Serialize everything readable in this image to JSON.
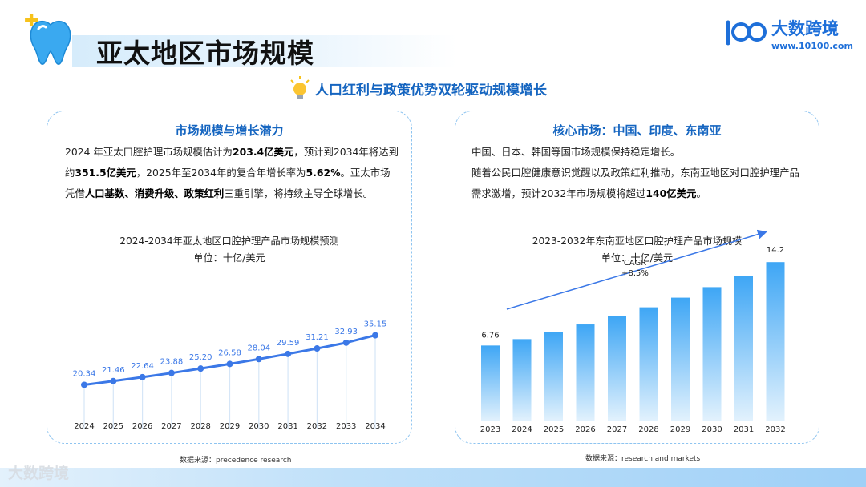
{
  "header": {
    "title": "亚太地区市场规模",
    "subtitle": "人口红利与政策优势双轮驱动规模增长",
    "logo_name": "大数跨境",
    "logo_url": "www.10100.com",
    "tooth_color": "#3aa9f0"
  },
  "left_card": {
    "heading": "市场规模与增长潜力",
    "paragraph_parts": [
      {
        "t": "2024 年亚太口腔护理市场规模估计为",
        "b": false
      },
      {
        "t": "203.4亿美元",
        "b": true
      },
      {
        "t": "，预计到2034年将达到约",
        "b": false
      },
      {
        "t": "351.5亿美元",
        "b": true
      },
      {
        "t": "，2025年至2034年的复合年增长率为",
        "b": false
      },
      {
        "t": "5.62%",
        "b": true
      },
      {
        "t": "。亚太市场凭借",
        "b": false
      },
      {
        "t": "人口基数、消费升级、政策红利",
        "b": true
      },
      {
        "t": "三重引擎，将持续主导全球增长。",
        "b": false
      }
    ],
    "source": "数据来源：precedence research"
  },
  "right_card": {
    "heading": "核心市场：中国、印度、东南亚",
    "line1": "中国、日本、韩国等国市场规模保持稳定增长。",
    "paragraph_parts": [
      {
        "t": "随着公民口腔健康意识觉醒以及政策红利推动，东南亚地区对口腔护理产品需求激增，预计2032年市场规模将超过",
        "b": false
      },
      {
        "t": "140亿美元",
        "b": true
      },
      {
        "t": "。",
        "b": false
      }
    ],
    "source": "数据来源：research and markets"
  },
  "chart_data": [
    {
      "type": "line",
      "title": "2024-2034年亚太地区口腔护理产品市场规模预测",
      "unit": "单位：十亿/美元",
      "x": [
        "2024",
        "2025",
        "2026",
        "2027",
        "2028",
        "2029",
        "2030",
        "2031",
        "2032",
        "2033",
        "2034"
      ],
      "values": [
        20.34,
        21.46,
        22.64,
        23.88,
        25.2,
        26.58,
        28.04,
        29.59,
        31.21,
        32.93,
        35.15
      ],
      "data_labels": [
        "20.34",
        "21.46",
        "22.64",
        "23.88",
        "25.20",
        "26.58",
        "28.04",
        "29.59",
        "31.21",
        "32.93",
        "35.15"
      ],
      "color": "#3b78e7",
      "grid": false
    },
    {
      "type": "bar",
      "title": "2023-2032年东南亚地区口腔护理产品市场规模",
      "unit": "单位：十亿/美元",
      "categories": [
        "2023",
        "2024",
        "2025",
        "2026",
        "2027",
        "2028",
        "2029",
        "2030",
        "2031",
        "2032"
      ],
      "values": [
        6.76,
        7.33,
        7.96,
        8.64,
        9.37,
        10.17,
        11.03,
        11.97,
        12.99,
        14.2
      ],
      "data_labels": {
        "first": "6.76",
        "last": "14.2"
      },
      "annotation": "CAGR\n+8.5%",
      "colors": {
        "top": "#3ea6f5",
        "bottom": "#e3f2fd",
        "arrow": "#3b78e7"
      },
      "grid": false
    }
  ]
}
